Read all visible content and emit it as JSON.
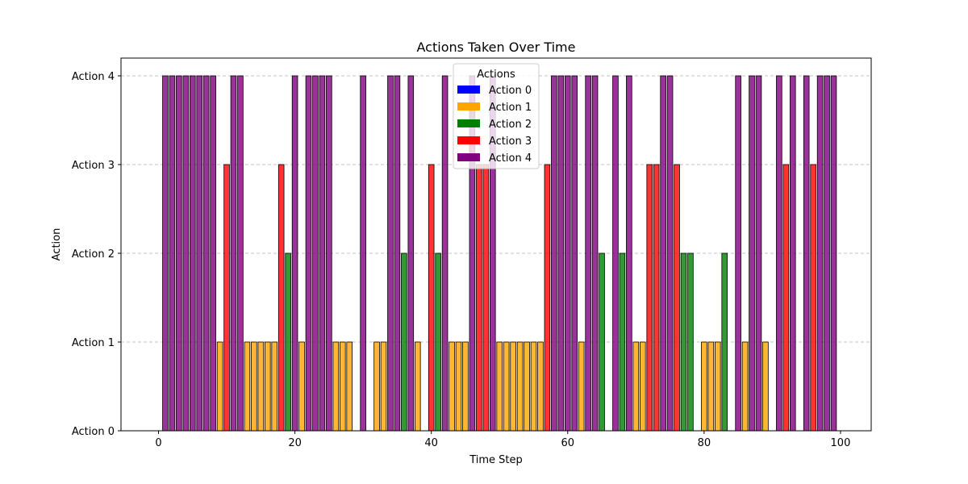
{
  "chart_data": {
    "type": "bar",
    "title": "Actions Taken Over Time",
    "xlabel": "Time Step",
    "ylabel": "Action",
    "xlim": [
      -5.5,
      104.5
    ],
    "ylim": [
      0,
      4.2
    ],
    "x_ticks": [
      0,
      20,
      40,
      60,
      80,
      100
    ],
    "y_ticks": [
      0,
      1,
      2,
      3,
      4
    ],
    "y_tick_labels": [
      "Action 0",
      "Action 1",
      "Action 2",
      "Action 3",
      "Action 4"
    ],
    "grid": "y-dashed",
    "legend": {
      "title": "Actions",
      "placement": "top-center",
      "entries": [
        "Action 0",
        "Action 1",
        "Action 2",
        "Action 3",
        "Action 4"
      ]
    },
    "colors": [
      "#0000ff",
      "#ffa500",
      "#008000",
      "#ff0000",
      "#800080"
    ],
    "x": [
      0,
      1,
      2,
      3,
      4,
      5,
      6,
      7,
      8,
      9,
      10,
      11,
      12,
      13,
      14,
      15,
      16,
      17,
      18,
      19,
      20,
      21,
      22,
      23,
      24,
      25,
      26,
      27,
      28,
      29,
      30,
      31,
      32,
      33,
      34,
      35,
      36,
      37,
      38,
      39,
      40,
      41,
      42,
      43,
      44,
      45,
      46,
      47,
      48,
      49,
      50,
      51,
      52,
      53,
      54,
      55,
      56,
      57,
      58,
      59,
      60,
      61,
      62,
      63,
      64,
      65,
      66,
      67,
      68,
      69,
      70,
      71,
      72,
      73,
      74,
      75,
      76,
      77,
      78,
      79,
      80,
      81,
      82,
      83,
      84,
      85,
      86,
      87,
      88,
      89,
      90,
      91,
      92,
      93,
      94,
      95,
      96,
      97,
      98,
      99
    ],
    "values": [
      0,
      4,
      4,
      4,
      4,
      4,
      4,
      4,
      4,
      1,
      3,
      4,
      4,
      1,
      1,
      1,
      1,
      1,
      3,
      2,
      4,
      1,
      4,
      4,
      4,
      4,
      1,
      1,
      1,
      0,
      4,
      0,
      1,
      1,
      4,
      4,
      2,
      4,
      1,
      0,
      3,
      2,
      4,
      1,
      1,
      1,
      4,
      3,
      3,
      4,
      1,
      1,
      1,
      1,
      1,
      1,
      1,
      3,
      4,
      4,
      4,
      4,
      1,
      4,
      4,
      2,
      0,
      4,
      2,
      4,
      1,
      1,
      3,
      3,
      4,
      4,
      3,
      2,
      2,
      0,
      1,
      1,
      1,
      2,
      0,
      4,
      1,
      4,
      4,
      1,
      0,
      4,
      3,
      4,
      0,
      4,
      3,
      4,
      4,
      4
    ]
  }
}
